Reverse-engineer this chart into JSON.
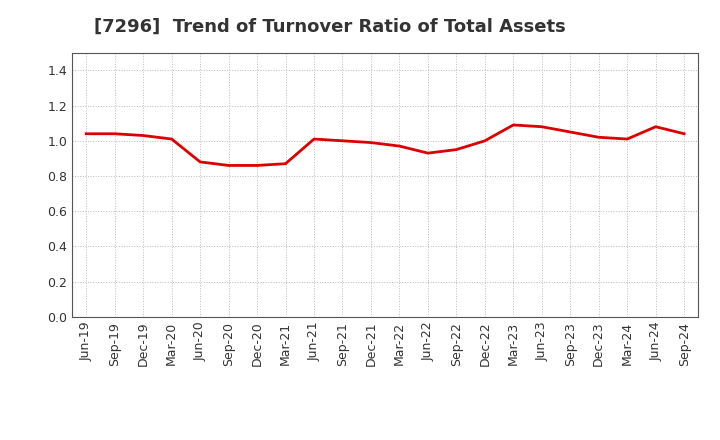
{
  "title": "[7296]  Trend of Turnover Ratio of Total Assets",
  "x_labels": [
    "Jun-19",
    "Sep-19",
    "Dec-19",
    "Mar-20",
    "Jun-20",
    "Sep-20",
    "Dec-20",
    "Mar-21",
    "Jun-21",
    "Sep-21",
    "Dec-21",
    "Mar-22",
    "Jun-22",
    "Sep-22",
    "Dec-22",
    "Mar-23",
    "Jun-23",
    "Sep-23",
    "Dec-23",
    "Mar-24",
    "Jun-24",
    "Sep-24"
  ],
  "y_values": [
    1.04,
    1.04,
    1.03,
    1.01,
    0.88,
    0.86,
    0.86,
    0.87,
    1.01,
    1.0,
    0.99,
    0.97,
    0.93,
    0.95,
    1.0,
    1.09,
    1.08,
    1.05,
    1.02,
    1.01,
    1.08,
    1.04
  ],
  "line_color": "#dd0000",
  "line_width": 2.0,
  "ylim": [
    0.0,
    1.5
  ],
  "yticks": [
    0.0,
    0.2,
    0.4,
    0.6,
    0.8,
    1.0,
    1.2,
    1.4
  ],
  "background_color": "#ffffff",
  "grid_color": "#bbbbbb",
  "title_fontsize": 13,
  "title_color": "#333333",
  "tick_fontsize": 9,
  "tick_color": "#333333"
}
